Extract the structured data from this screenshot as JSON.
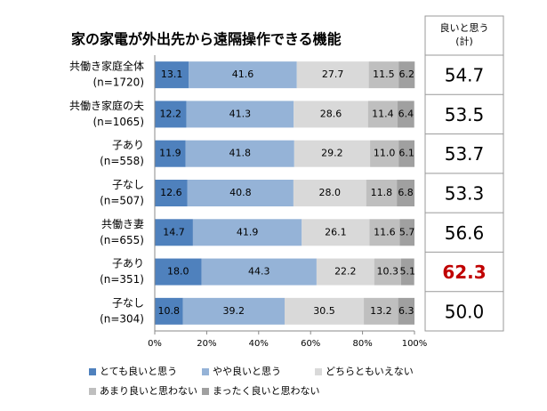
{
  "chart_data": {
    "type": "stacked_bar_horizontal",
    "title": "家の家電が外出先から遠隔操作できる機能",
    "categories": [
      "共働き家庭全体",
      "共働き家庭の夫",
      "子あり",
      "子なし",
      "共働き妻",
      "子あり",
      "子なし"
    ],
    "category_sublabels": [
      "(n=1720)",
      "(n=1065)",
      "(n=558)",
      "(n=507)",
      "(n=655)",
      "(n=351)",
      "(n=304)"
    ],
    "series": [
      {
        "name": "とても良いと思う",
        "color": "#4f81bd",
        "values": [
          13.1,
          12.2,
          11.9,
          12.6,
          14.7,
          18.0,
          10.8
        ],
        "value_labels": [
          "13.1",
          "12.2",
          "11.9",
          "12.6",
          "14.7",
          "18.0",
          "10.8"
        ]
      },
      {
        "name": "やや良いと思う",
        "color": "#95b3d7",
        "values": [
          41.6,
          41.3,
          41.8,
          40.8,
          41.9,
          44.3,
          39.2
        ],
        "value_labels": [
          "41.6",
          "41.3",
          "41.8",
          "40.8",
          "41.9",
          "44.3",
          "39.2"
        ]
      },
      {
        "name": "どちらともいえない",
        "color": "#d9d9d9",
        "values": [
          27.7,
          28.6,
          29.2,
          28.0,
          26.1,
          22.2,
          30.5
        ],
        "value_labels": [
          "27.7",
          "28.6",
          "29.2",
          "28.0",
          "26.1",
          "22.2",
          "30.5"
        ]
      },
      {
        "name": "あまり良いと思わない",
        "color": "#bfbfbf",
        "values": [
          11.5,
          11.4,
          11.0,
          11.8,
          11.6,
          10.3,
          13.2
        ],
        "value_labels": [
          "11.5",
          "11.4",
          "11.0",
          "11.8",
          "11.6",
          "10.3",
          "13.2"
        ]
      },
      {
        "name": "まったく良いと思わない",
        "color": "#a0a0a0",
        "values": [
          6.2,
          6.4,
          6.1,
          6.8,
          5.7,
          5.1,
          6.3
        ],
        "value_labels": [
          "6.2",
          "6.4",
          "6.1",
          "6.8",
          "5.7",
          "5.1",
          "6.3"
        ]
      }
    ],
    "xlim": [
      0,
      100
    ],
    "xticks": [
      {
        "value": 0,
        "label": "0%"
      },
      {
        "value": 20,
        "label": "20%"
      },
      {
        "value": 40,
        "label": "40%"
      },
      {
        "value": 60,
        "label": "60%"
      },
      {
        "value": 80,
        "label": "80%"
      },
      {
        "value": 100,
        "label": "100%"
      }
    ],
    "totals": {
      "header": [
        "良いと思う",
        "(計)"
      ],
      "values": [
        54.7,
        53.5,
        53.7,
        53.3,
        56.6,
        62.3,
        50.0
      ],
      "value_labels": [
        "54.7",
        "53.5",
        "53.7",
        "53.3",
        "56.6",
        "62.3",
        "50.0"
      ],
      "color": "#000000",
      "highlight": 5,
      "highlight_color": "#c00000"
    }
  }
}
